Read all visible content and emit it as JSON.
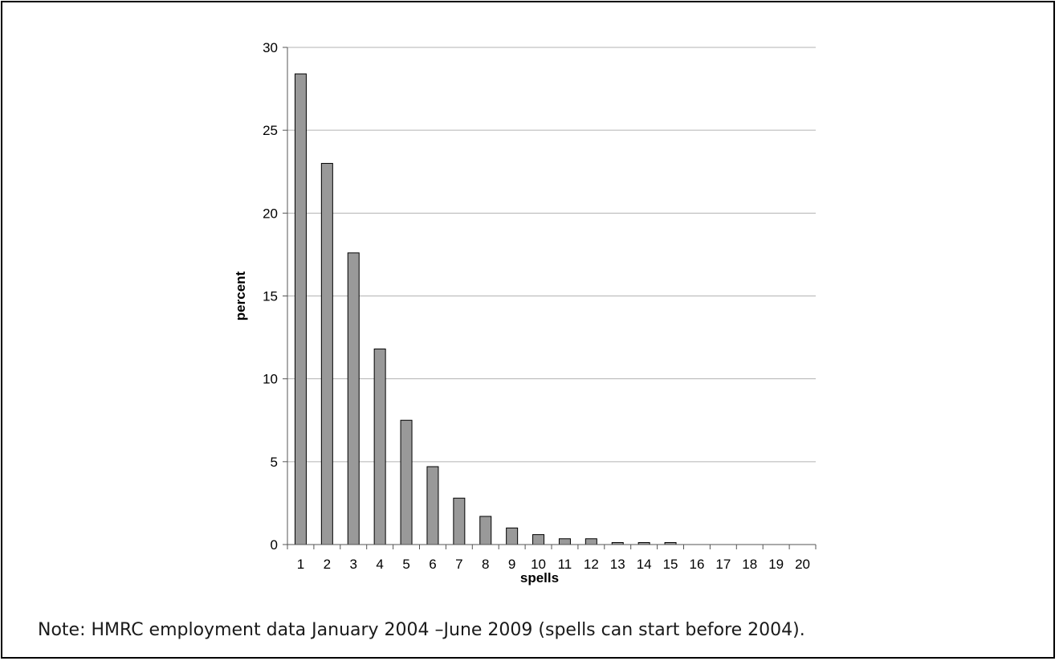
{
  "note": "Note: HMRC employment data January 2004 –June 2009 (spells can start before 2004).",
  "chart_data": {
    "type": "bar",
    "title": "",
    "xlabel": "spells",
    "ylabel": "percent",
    "ylim": [
      0,
      30
    ],
    "yticks": [
      0,
      5,
      10,
      15,
      20,
      25,
      30
    ],
    "grid": true,
    "categories": [
      "1",
      "2",
      "3",
      "4",
      "5",
      "6",
      "7",
      "8",
      "9",
      "10",
      "11",
      "12",
      "13",
      "14",
      "15",
      "16",
      "17",
      "18",
      "19",
      "20"
    ],
    "values": [
      28.4,
      23.0,
      17.6,
      11.8,
      7.5,
      4.7,
      2.8,
      1.7,
      1.0,
      0.6,
      0.35,
      0.35,
      0.12,
      0.12,
      0.12,
      0,
      0,
      0,
      0,
      0
    ],
    "bar_color": "#999999",
    "bar_edge_color": "#000000",
    "grid_color": "#b3b3b3"
  }
}
